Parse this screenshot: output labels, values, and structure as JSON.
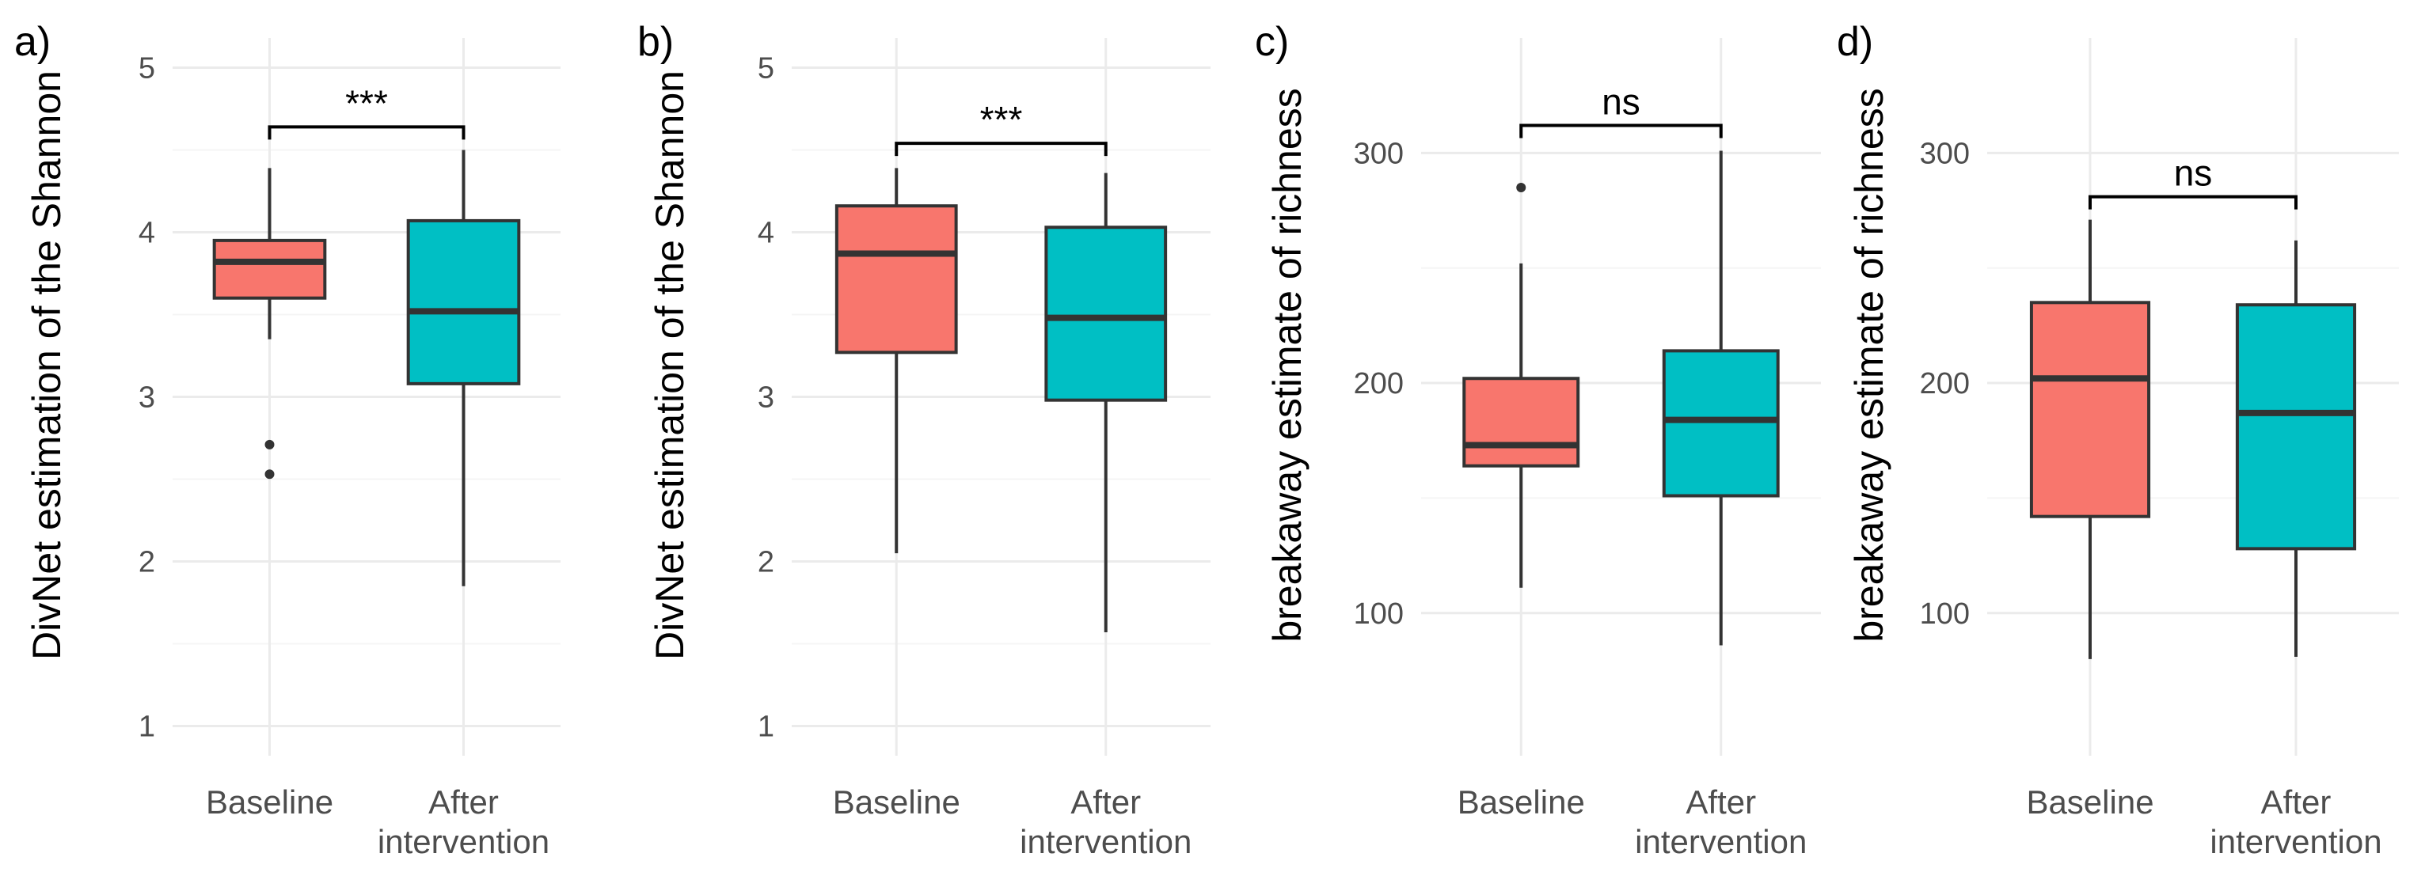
{
  "colors": {
    "baseline_fill": "#F8766D",
    "after_fill": "#00BFC4",
    "outline": "#333333",
    "grid_major": "#EBEBEB",
    "grid_minor": "#F5F5F5",
    "text": "#000000",
    "tick_text": "#4D4D4D"
  },
  "chart_data": [
    {
      "panel_label": "a)",
      "type": "box",
      "ylabel": "DivNet estimation of the Shannon",
      "ylim": [
        0.82,
        5.18
      ],
      "yticks": [
        1,
        2,
        3,
        4,
        5
      ],
      "ytick_labels": [
        "1",
        "2",
        "3",
        "4",
        "5"
      ],
      "grid": true,
      "categories": [
        [
          "Baseline"
        ],
        [
          "After",
          "intervention"
        ]
      ],
      "boxes": [
        {
          "min": 3.35,
          "q1": 3.6,
          "median": 3.82,
          "q3": 3.95,
          "max": 4.39,
          "outliers": [
            2.71,
            2.53
          ]
        },
        {
          "min": 1.85,
          "q1": 3.08,
          "median": 3.52,
          "q3": 4.07,
          "max": 4.5,
          "outliers": []
        }
      ],
      "significance": {
        "label": "***",
        "y": 4.64
      }
    },
    {
      "panel_label": "b)",
      "type": "box",
      "ylabel": "DivNet estimation of the Shannon",
      "ylim": [
        0.82,
        5.18
      ],
      "yticks": [
        1,
        2,
        3,
        4,
        5
      ],
      "ytick_labels": [
        "1",
        "2",
        "3",
        "4",
        "5"
      ],
      "grid": true,
      "categories": [
        [
          "Baseline"
        ],
        [
          "After",
          "intervention"
        ]
      ],
      "boxes": [
        {
          "min": 2.05,
          "q1": 3.27,
          "median": 3.87,
          "q3": 4.16,
          "max": 4.39,
          "outliers": []
        },
        {
          "min": 1.57,
          "q1": 2.98,
          "median": 3.48,
          "q3": 4.03,
          "max": 4.36,
          "outliers": []
        }
      ],
      "significance": {
        "label": "***",
        "y": 4.54
      }
    },
    {
      "panel_label": "c)",
      "type": "box",
      "ylabel": "breakaway estimate of richness",
      "ylim": [
        38,
        350
      ],
      "yticks": [
        100,
        200,
        300
      ],
      "ytick_labels": [
        "100",
        "200",
        "300"
      ],
      "grid": true,
      "categories": [
        [
          "Baseline"
        ],
        [
          "After",
          "intervention"
        ]
      ],
      "boxes": [
        {
          "min": 111,
          "q1": 164,
          "median": 173,
          "q3": 202,
          "max": 252,
          "outliers": [
            285
          ]
        },
        {
          "min": 86,
          "q1": 151,
          "median": 184,
          "q3": 214,
          "max": 301,
          "outliers": []
        }
      ],
      "significance": {
        "label": "ns",
        "y": 312
      }
    },
    {
      "panel_label": "d)",
      "type": "box",
      "ylabel": "breakaway estimate of richness",
      "ylim": [
        38,
        350
      ],
      "yticks": [
        100,
        200,
        300
      ],
      "ytick_labels": [
        "100",
        "200",
        "300"
      ],
      "grid": true,
      "categories": [
        [
          "Baseline"
        ],
        [
          "After",
          "intervention"
        ]
      ],
      "boxes": [
        {
          "min": 80,
          "q1": 142,
          "median": 202,
          "q3": 235,
          "max": 271,
          "outliers": []
        },
        {
          "min": 81,
          "q1": 128,
          "median": 187,
          "q3": 234,
          "max": 262,
          "outliers": []
        }
      ],
      "significance": {
        "label": "ns",
        "y": 281
      }
    }
  ]
}
